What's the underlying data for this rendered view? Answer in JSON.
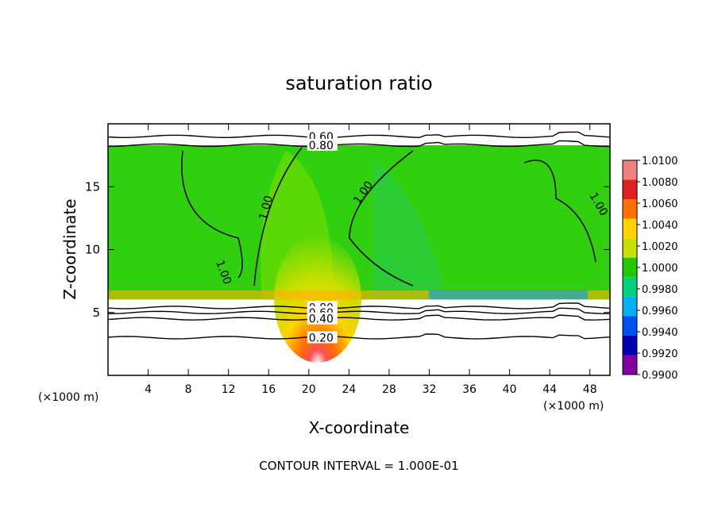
{
  "chart_data": {
    "type": "heatmap",
    "title": "saturation ratio",
    "xlabel": "X-coordinate",
    "ylabel": "Z-coordinate",
    "x_unit": "(×1000 m)",
    "footer": "CONTOUR INTERVAL = 1.000E-01",
    "xlim": [
      0,
      50
    ],
    "ylim": [
      0,
      20
    ],
    "xticks": [
      "4",
      "8",
      "12",
      "16",
      "20",
      "24",
      "28",
      "32",
      "36",
      "40",
      "44",
      "48"
    ],
    "yticks": [
      "5",
      "10",
      "15"
    ],
    "colorbar_labels": [
      "1.0100",
      "1.0080",
      "1.0060",
      "1.0040",
      "1.0020",
      "1.0000",
      "0.9980",
      "0.9960",
      "0.9940",
      "0.9920",
      "0.9900"
    ],
    "colorbar_colors": [
      "#f08080",
      "#e02020",
      "#ff7000",
      "#ffd200",
      "#c8e000",
      "#20c800",
      "#00d080",
      "#00b0f0",
      "#0050f0",
      "#0000b0",
      "#8000a0"
    ],
    "contour_labels_lower": [
      "0.80",
      "0.60",
      "0.40",
      "0.20"
    ],
    "contour_labels_upper": [
      "0.60",
      "0.80"
    ],
    "contour_labels_mid": [
      "1.00",
      "1.00",
      "1.00",
      "1.00"
    ],
    "contour_levels_lower": [
      5.4,
      5.0,
      4.5,
      3.0
    ],
    "contour_levels_upper": [
      19.0,
      18.3
    ],
    "contour_label_x_lower": 20,
    "contour_label_x_upper": 20
  }
}
